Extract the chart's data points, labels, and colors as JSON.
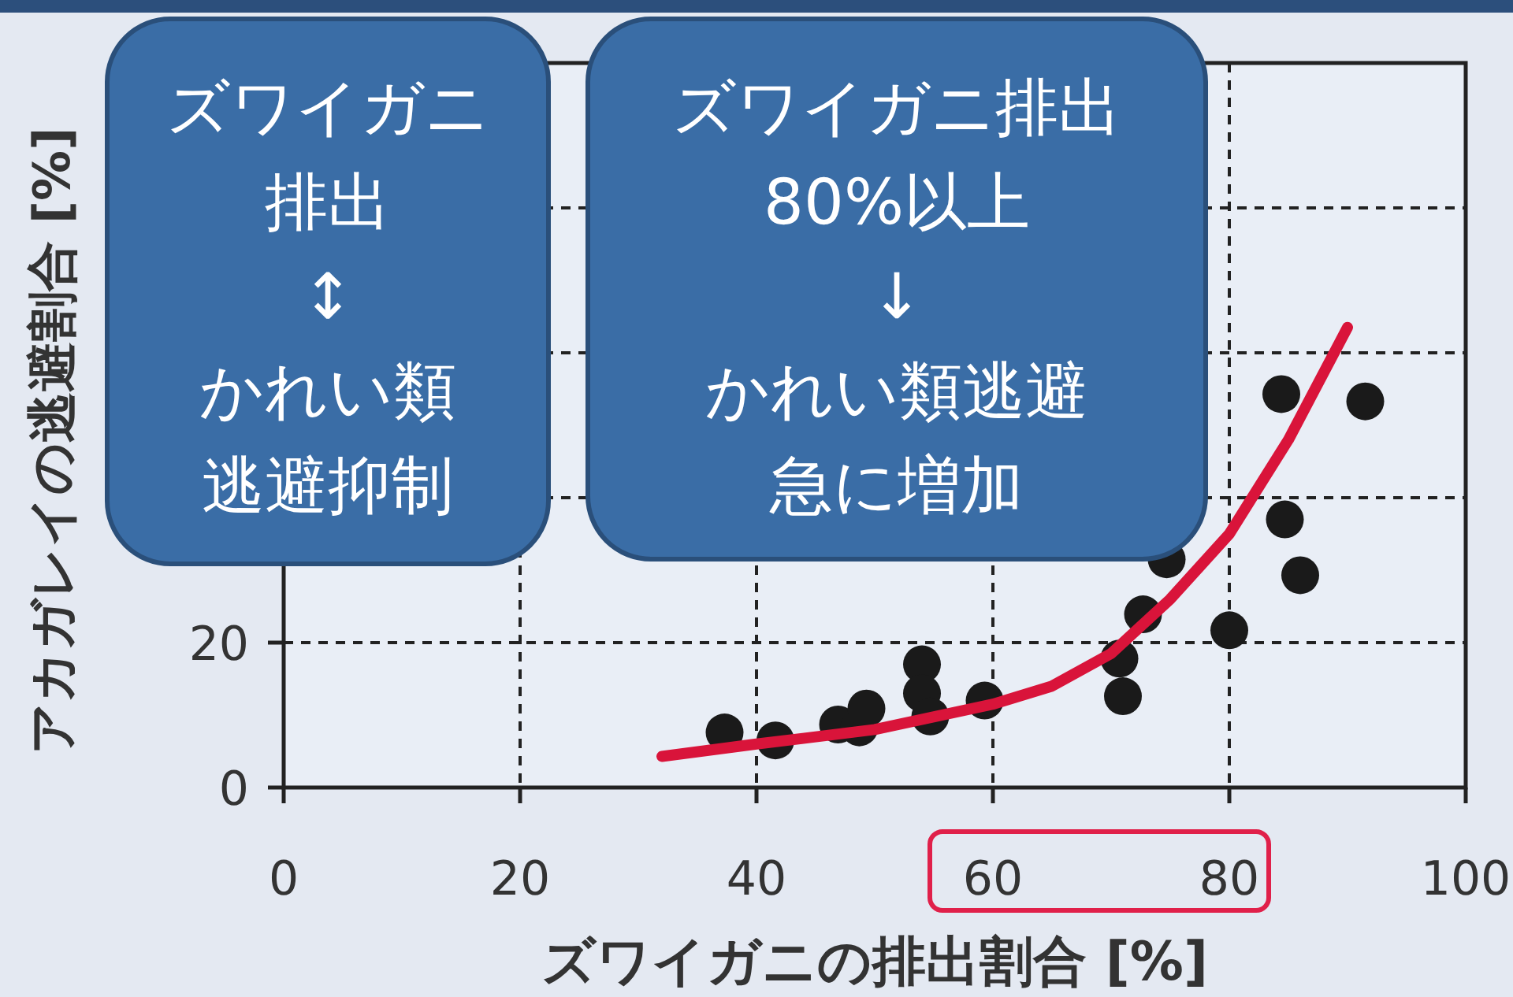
{
  "chart_data": {
    "type": "scatter",
    "xlabel": "ズワイガニの排出割合 [%]",
    "ylabel": "アカガレイの逃避割合 [%]",
    "xlim": [
      0,
      100
    ],
    "ylim": [
      0,
      100
    ],
    "xticks": [
      0,
      20,
      40,
      60,
      80,
      100
    ],
    "yticks": [
      0,
      20,
      {
        "value": 40,
        "label": null
      },
      {
        "value": 60,
        "label": null
      },
      {
        "value": 80,
        "label": null
      },
      {
        "value": 100,
        "label": null
      }
    ],
    "grid": true,
    "series": [
      {
        "marker": "circle",
        "color": "#1a1a1a",
        "x": [
          37.3,
          41.6,
          46.9,
          48.7,
          49.3,
          54,
          54,
          54.7,
          59.3,
          70.7,
          71,
          72.7,
          74.7,
          80,
          84.4,
          84.7,
          86,
          91.5
        ],
        "values": [
          7.6,
          6.5,
          8.7,
          8.3,
          10.9,
          17,
          13,
          9.8,
          12,
          17.8,
          12.6,
          23.9,
          31.5,
          21.7,
          54.3,
          37,
          29.3,
          53.3
        ]
      },
      {
        "type": "line",
        "color": "#d9143a",
        "x": [
          32,
          40,
          50,
          60,
          65,
          70,
          75,
          80,
          85,
          90
        ],
        "values": [
          4.3,
          6,
          8,
          11.5,
          14,
          18.5,
          26,
          35,
          48,
          63.5
        ]
      }
    ],
    "annotations": [
      "ズワイガニ",
      "排出",
      "↕",
      "かれい類",
      "逃避抑制",
      "ズワイガニ排出",
      "80%以上",
      "↓",
      "かれい類逃避",
      "急に増加"
    ]
  }
}
